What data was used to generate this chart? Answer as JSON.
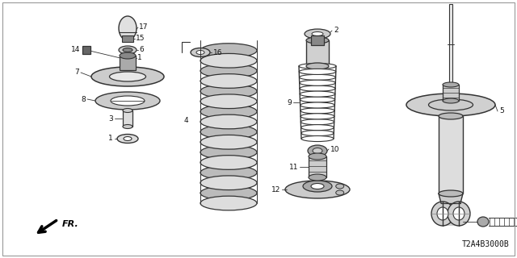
{
  "bg_color": "#ffffff",
  "diagram_code": "T2A4B3000B",
  "fr_label": "FR.",
  "line_color": "#333333",
  "text_color": "#111111",
  "fig_w": 6.4,
  "fig_h": 3.2,
  "dpi": 100
}
